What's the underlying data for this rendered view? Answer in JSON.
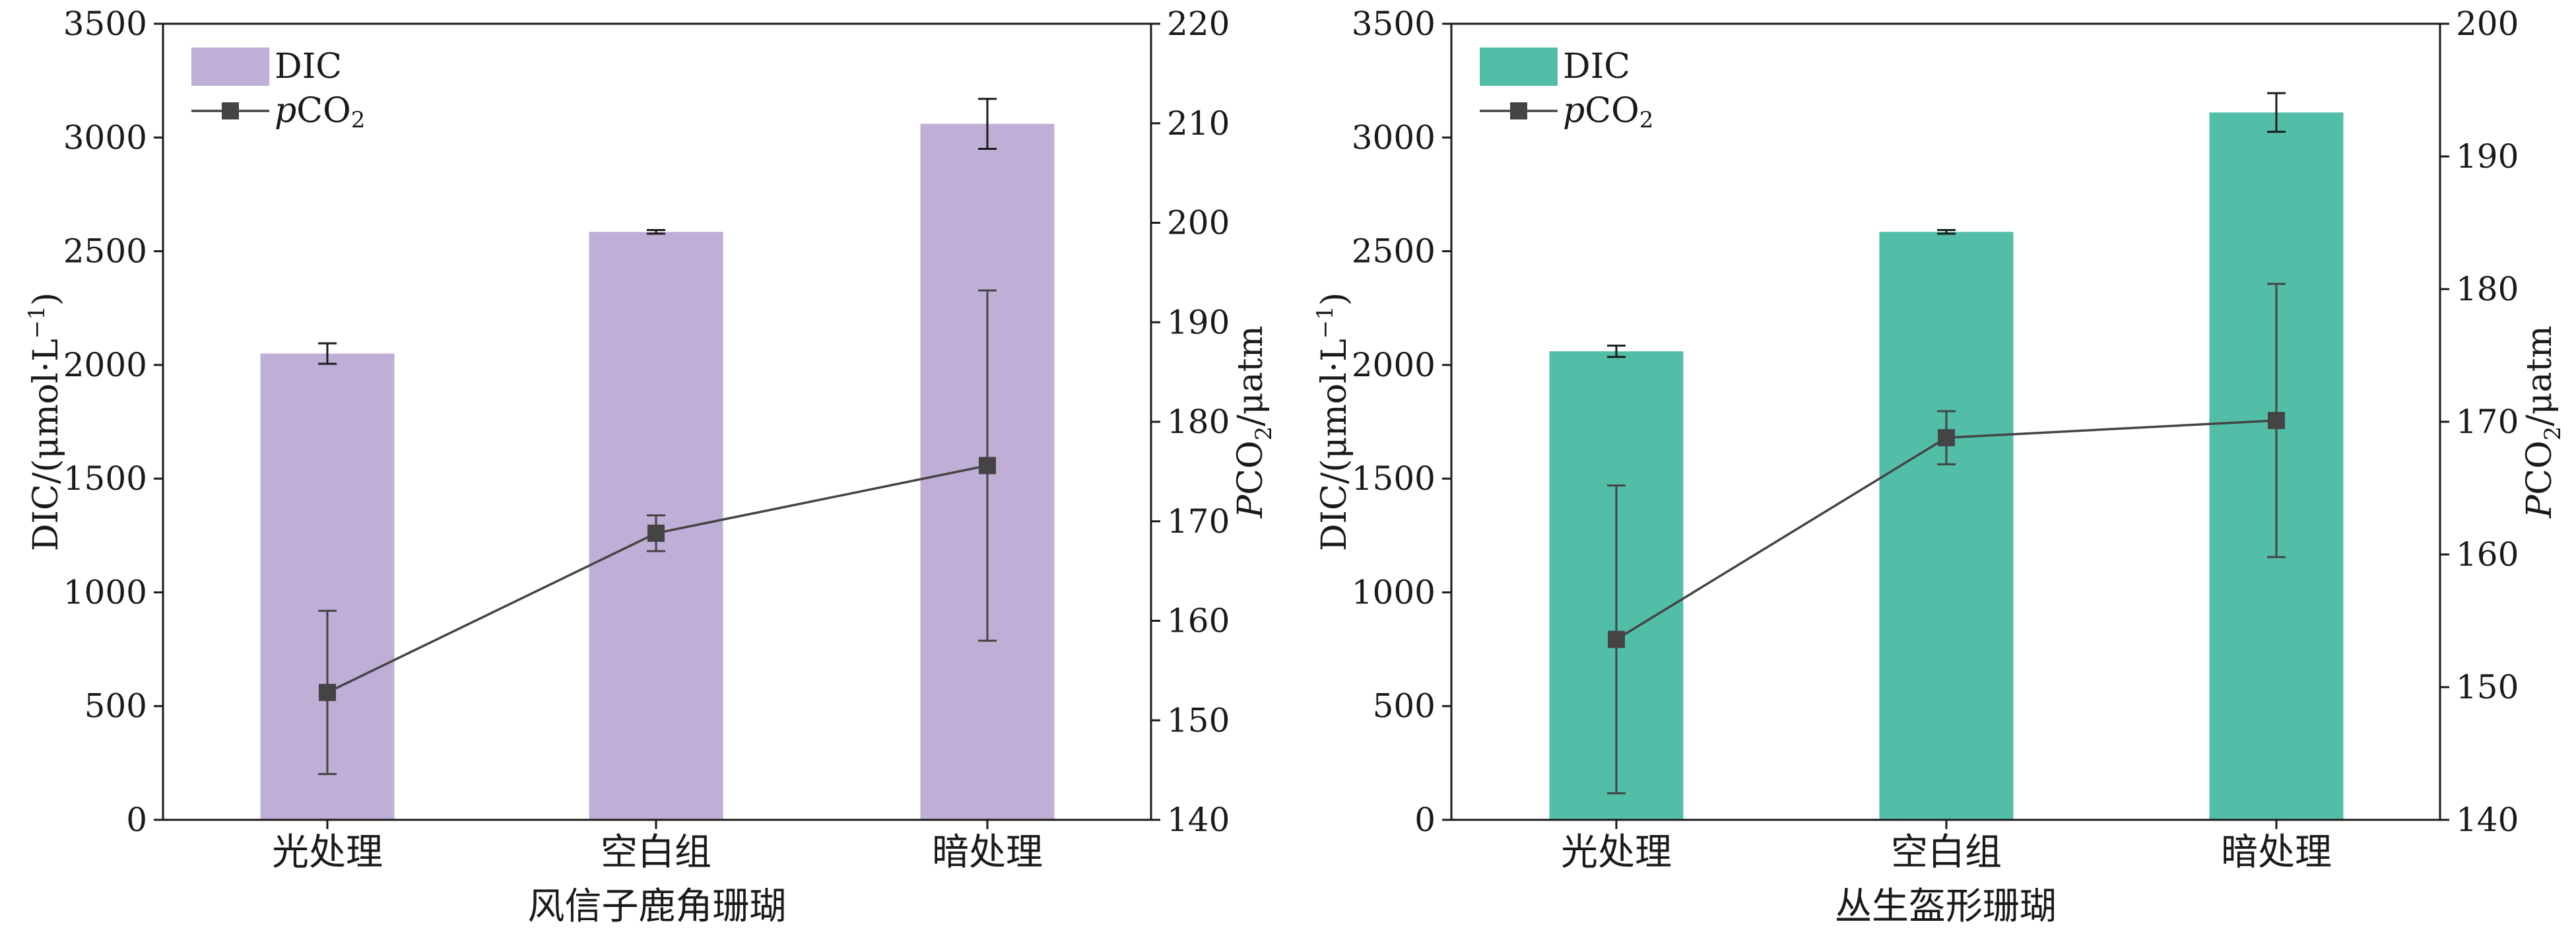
{
  "chart_data": [
    {
      "type": "bar+line",
      "title": "",
      "xlabel": "风信子鹿角珊瑚",
      "ylabel_left_parts": [
        "DIC/(μmol·L",
        "−1",
        ")"
      ],
      "ylabel_right_parts": [
        "P",
        "CO",
        "2",
        "/μatm"
      ],
      "categories": [
        "光处理",
        "空白组",
        "暗处理"
      ],
      "ylim_left": [
        0,
        3500
      ],
      "yticks_left": [
        0,
        500,
        1000,
        1500,
        2000,
        2500,
        3000,
        3500
      ],
      "ylim_right": [
        140,
        220
      ],
      "yticks_right": [
        140,
        150,
        160,
        170,
        180,
        190,
        200,
        210,
        220
      ],
      "legend": {
        "position": "top-left",
        "bar_label": "DIC",
        "line_label_parts": [
          "p",
          "CO",
          "2"
        ]
      },
      "bar_color": "#bfaed5",
      "line_color": "#444444",
      "bars": {
        "name": "DIC",
        "values": [
          2050,
          2585,
          3060
        ],
        "errors": [
          45,
          8,
          110
        ]
      },
      "line": {
        "name": "pCO2",
        "values": [
          152.8,
          168.8,
          175.6
        ],
        "errors": [
          8.2,
          1.8,
          17.6
        ]
      }
    },
    {
      "type": "bar+line",
      "title": "",
      "xlabel": "丛生盔形珊瑚",
      "ylabel_left_parts": [
        "DIC/(μmol·L",
        "−1",
        ")"
      ],
      "ylabel_right_parts": [
        "P",
        "CO",
        "2",
        "/μatm"
      ],
      "categories": [
        "光处理",
        "空白组",
        "暗处理"
      ],
      "ylim_left": [
        0,
        3500
      ],
      "yticks_left": [
        0,
        500,
        1000,
        1500,
        2000,
        2500,
        3000,
        3500
      ],
      "ylim_right": [
        140,
        200
      ],
      "yticks_right": [
        140,
        150,
        160,
        170,
        180,
        190,
        200
      ],
      "legend": {
        "position": "top-left",
        "bar_label": "DIC",
        "line_label_parts": [
          "p",
          "CO",
          "2"
        ]
      },
      "bar_color": "#52bea8",
      "line_color": "#444444",
      "bars": {
        "name": "DIC",
        "values": [
          2060,
          2585,
          3110
        ],
        "errors": [
          25,
          8,
          85
        ]
      },
      "line": {
        "name": "pCO2",
        "values": [
          153.6,
          168.8,
          170.1
        ],
        "errors": [
          11.6,
          2.0,
          10.3
        ]
      }
    }
  ]
}
